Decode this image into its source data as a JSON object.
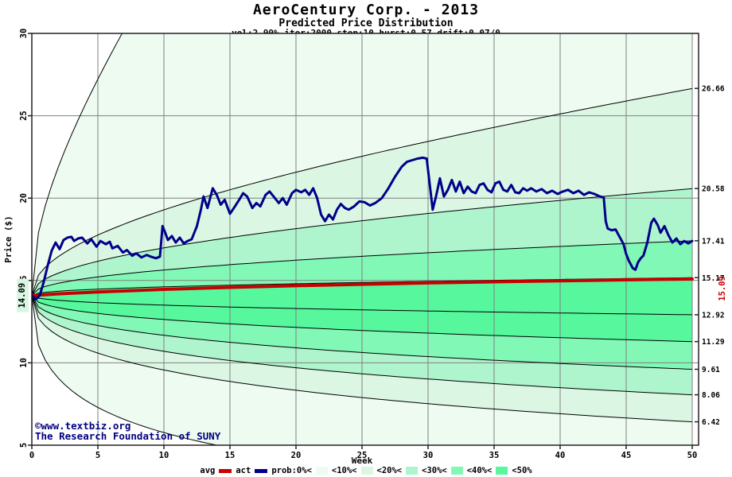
{
  "header": {
    "title": "AeroCentury Corp. - 2013",
    "subtitle": "Predicted Price Distribution",
    "params": "vol:2.99% iter:2000 step:10 hurst:0.57 drift:0.07/0"
  },
  "watermark": {
    "line1": "©www.textbiz.org",
    "line2": "The Research Foundation of SUNY"
  },
  "axes": {
    "x_label": "Week",
    "y_label": "Price ($)",
    "x_ticks": [
      0,
      5,
      10,
      15,
      20,
      25,
      30,
      35,
      40,
      45,
      50
    ],
    "y_ticks": [
      5,
      10,
      15,
      20,
      25,
      30
    ],
    "x_range": [
      0,
      50
    ],
    "y_range": [
      5,
      30
    ]
  },
  "annotations": {
    "start_price_label": "14.09",
    "final_avg_label": "15.09"
  },
  "colors": {
    "act_line": "#00008B",
    "avg_line": "#C80000",
    "grid": "#808080",
    "frame": "#222222",
    "curve": "#000000",
    "watermark": "#000080",
    "start_label_bg": "#D9F6E3",
    "band_s1": "#EDFBF0",
    "band_s2": "#DBF7E4",
    "band_s3": "#AEF5CD",
    "band_s4": "#82F8B6",
    "band_s5": "#57F89D"
  },
  "legend": {
    "items": [
      {
        "type": "text",
        "label": "avg"
      },
      {
        "type": "line",
        "color": "#C80000"
      },
      {
        "type": "text",
        "label": "act"
      },
      {
        "type": "line",
        "color": "#00008B"
      },
      {
        "type": "text",
        "label": "prob:0%<"
      },
      {
        "type": "swatch",
        "color": "#EDFBF0"
      },
      {
        "type": "text",
        "label": "<10%<"
      },
      {
        "type": "swatch",
        "color": "#DBF7E4"
      },
      {
        "type": "text",
        "label": "<20%<"
      },
      {
        "type": "swatch",
        "color": "#AEF5CD"
      },
      {
        "type": "text",
        "label": "<30%<"
      },
      {
        "type": "swatch",
        "color": "#82F8B6"
      },
      {
        "type": "text",
        "label": "<40%<"
      },
      {
        "type": "swatch",
        "color": "#57F89D"
      },
      {
        "type": "text",
        "label": "<50%"
      }
    ]
  },
  "chart_data": {
    "type": "line",
    "title": "AeroCentury Corp. - 2013 / Predicted Price Distribution",
    "xlabel": "Week",
    "ylabel": "Price ($)",
    "xlim": [
      0,
      50
    ],
    "ylim": [
      5,
      30
    ],
    "grid": true,
    "start_price": 14.09,
    "final_average": 15.09,
    "quantile_model": {
      "exponent": 0.44,
      "s0": 14.09
    },
    "quantile_curves": [
      {
        "c": 1.814,
        "endpoint": null,
        "label": ""
      },
      {
        "c": 0.6374,
        "endpoint": 26.66,
        "label": "26.66"
      },
      {
        "c": 0.3787,
        "endpoint": 20.58,
        "label": "20.58"
      },
      {
        "c": 0.2115,
        "endpoint": 17.41,
        "label": "17.41"
      },
      {
        "c": 0.0738,
        "endpoint": 15.17,
        "label": "15.17"
      },
      {
        "c": -0.0866,
        "endpoint": 12.92,
        "label": "12.92"
      },
      {
        "c": -0.2216,
        "endpoint": 11.29,
        "label": "11.29"
      },
      {
        "c": -0.3827,
        "endpoint": 9.61,
        "label": "9.61"
      },
      {
        "c": -0.5586,
        "endpoint": 8.06,
        "label": "8.06"
      },
      {
        "c": -0.7861,
        "endpoint": 6.42,
        "label": "6.42"
      },
      {
        "c": -1.814,
        "endpoint": null,
        "label": ""
      }
    ],
    "bands": [
      {
        "upper": 0,
        "lower": 10,
        "color": "#EDFBF0",
        "prob": "0-10%"
      },
      {
        "upper": 1,
        "lower": 9,
        "color": "#DBF7E4",
        "prob": "10-20%"
      },
      {
        "upper": 2,
        "lower": 8,
        "color": "#AEF5CD",
        "prob": "20-30%"
      },
      {
        "upper": 3,
        "lower": 7,
        "color": "#82F8B6",
        "prob": "30-40%"
      },
      {
        "upper": 4,
        "lower": 6,
        "color": "#57F89D",
        "prob": "40-50%"
      }
    ],
    "series": [
      {
        "name": "avg",
        "color": "#C80000",
        "points": [
          [
            0,
            14.09
          ],
          [
            2,
            14.19
          ],
          [
            5,
            14.3
          ],
          [
            10,
            14.46
          ],
          [
            15,
            14.58
          ],
          [
            20,
            14.68
          ],
          [
            25,
            14.77
          ],
          [
            30,
            14.85
          ],
          [
            35,
            14.92
          ],
          [
            40,
            14.98
          ],
          [
            45,
            15.04
          ],
          [
            50,
            15.09
          ]
        ]
      },
      {
        "name": "act",
        "color": "#00008B",
        "points": [
          [
            0,
            14.09
          ],
          [
            0.3,
            13.85
          ],
          [
            0.6,
            14.1
          ],
          [
            0.9,
            14.9
          ],
          [
            1.2,
            15.9
          ],
          [
            1.5,
            16.8
          ],
          [
            1.8,
            17.3
          ],
          [
            2.1,
            16.9
          ],
          [
            2.4,
            17.45
          ],
          [
            2.7,
            17.6
          ],
          [
            3,
            17.65
          ],
          [
            3.2,
            17.4
          ],
          [
            3.5,
            17.55
          ],
          [
            3.8,
            17.6
          ],
          [
            4.2,
            17.25
          ],
          [
            4.5,
            17.5
          ],
          [
            4.9,
            17.05
          ],
          [
            5.2,
            17.4
          ],
          [
            5.6,
            17.2
          ],
          [
            5.9,
            17.35
          ],
          [
            6.1,
            16.95
          ],
          [
            6.5,
            17.1
          ],
          [
            6.9,
            16.7
          ],
          [
            7.2,
            16.85
          ],
          [
            7.6,
            16.5
          ],
          [
            7.9,
            16.65
          ],
          [
            8.3,
            16.4
          ],
          [
            8.7,
            16.55
          ],
          [
            9,
            16.45
          ],
          [
            9.4,
            16.35
          ],
          [
            9.7,
            16.45
          ],
          [
            9.9,
            18.3
          ],
          [
            10.1,
            17.9
          ],
          [
            10.3,
            17.45
          ],
          [
            10.6,
            17.7
          ],
          [
            10.9,
            17.3
          ],
          [
            11.2,
            17.6
          ],
          [
            11.5,
            17.25
          ],
          [
            11.8,
            17.4
          ],
          [
            12.1,
            17.5
          ],
          [
            12.5,
            18.3
          ],
          [
            12.8,
            19.3
          ],
          [
            13,
            20.1
          ],
          [
            13.3,
            19.4
          ],
          [
            13.7,
            20.6
          ],
          [
            14,
            20.2
          ],
          [
            14.3,
            19.6
          ],
          [
            14.6,
            19.9
          ],
          [
            15,
            19.05
          ],
          [
            15.3,
            19.4
          ],
          [
            15.7,
            19.9
          ],
          [
            16,
            20.3
          ],
          [
            16.3,
            20.1
          ],
          [
            16.7,
            19.4
          ],
          [
            17,
            19.7
          ],
          [
            17.3,
            19.5
          ],
          [
            17.7,
            20.2
          ],
          [
            18,
            20.4
          ],
          [
            18.3,
            20.1
          ],
          [
            18.7,
            19.7
          ],
          [
            19,
            20
          ],
          [
            19.3,
            19.6
          ],
          [
            19.7,
            20.3
          ],
          [
            20,
            20.5
          ],
          [
            20.4,
            20.35
          ],
          [
            20.7,
            20.5
          ],
          [
            21,
            20.2
          ],
          [
            21.3,
            20.6
          ],
          [
            21.6,
            20
          ],
          [
            21.9,
            19
          ],
          [
            22.2,
            18.6
          ],
          [
            22.5,
            19
          ],
          [
            22.8,
            18.7
          ],
          [
            23.1,
            19.3
          ],
          [
            23.4,
            19.65
          ],
          [
            23.7,
            19.4
          ],
          [
            24,
            19.3
          ],
          [
            24.4,
            19.5
          ],
          [
            24.8,
            19.8
          ],
          [
            25.2,
            19.75
          ],
          [
            25.6,
            19.55
          ],
          [
            26,
            19.7
          ],
          [
            26.5,
            20
          ],
          [
            27,
            20.6
          ],
          [
            27.5,
            21.3
          ],
          [
            28,
            21.9
          ],
          [
            28.4,
            22.2
          ],
          [
            28.8,
            22.3
          ],
          [
            29.2,
            22.4
          ],
          [
            29.6,
            22.45
          ],
          [
            29.9,
            22.4
          ],
          [
            30.1,
            21
          ],
          [
            30.35,
            19.3
          ],
          [
            30.6,
            20.1
          ],
          [
            30.9,
            21.2
          ],
          [
            31.2,
            20.1
          ],
          [
            31.5,
            20.5
          ],
          [
            31.8,
            21.1
          ],
          [
            32.1,
            20.4
          ],
          [
            32.4,
            21
          ],
          [
            32.7,
            20.3
          ],
          [
            33,
            20.7
          ],
          [
            33.3,
            20.4
          ],
          [
            33.6,
            20.3
          ],
          [
            33.9,
            20.8
          ],
          [
            34.2,
            20.9
          ],
          [
            34.5,
            20.5
          ],
          [
            34.8,
            20.35
          ],
          [
            35.1,
            20.9
          ],
          [
            35.4,
            21
          ],
          [
            35.7,
            20.5
          ],
          [
            36,
            20.4
          ],
          [
            36.3,
            20.8
          ],
          [
            36.6,
            20.35
          ],
          [
            36.9,
            20.3
          ],
          [
            37.2,
            20.6
          ],
          [
            37.5,
            20.45
          ],
          [
            37.8,
            20.6
          ],
          [
            38.2,
            20.4
          ],
          [
            38.6,
            20.55
          ],
          [
            39,
            20.3
          ],
          [
            39.4,
            20.45
          ],
          [
            39.8,
            20.25
          ],
          [
            40.2,
            20.4
          ],
          [
            40.6,
            20.5
          ],
          [
            41,
            20.3
          ],
          [
            41.4,
            20.45
          ],
          [
            41.8,
            20.2
          ],
          [
            42.2,
            20.35
          ],
          [
            42.6,
            20.25
          ],
          [
            43,
            20.1
          ],
          [
            43.3,
            20.05
          ],
          [
            43.45,
            18.6
          ],
          [
            43.6,
            18.15
          ],
          [
            43.9,
            18.05
          ],
          [
            44.2,
            18.1
          ],
          [
            44.4,
            17.8
          ],
          [
            44.6,
            17.5
          ],
          [
            44.8,
            17.2
          ],
          [
            45,
            16.6
          ],
          [
            45.2,
            16.2
          ],
          [
            45.5,
            15.75
          ],
          [
            45.7,
            15.65
          ],
          [
            45.9,
            16.1
          ],
          [
            46.1,
            16.35
          ],
          [
            46.3,
            16.5
          ],
          [
            46.6,
            17.3
          ],
          [
            46.9,
            18.5
          ],
          [
            47.1,
            18.75
          ],
          [
            47.4,
            18.35
          ],
          [
            47.6,
            17.9
          ],
          [
            47.9,
            18.3
          ],
          [
            48.2,
            17.75
          ],
          [
            48.5,
            17.3
          ],
          [
            48.8,
            17.55
          ],
          [
            49.1,
            17.2
          ],
          [
            49.4,
            17.4
          ],
          [
            49.7,
            17.25
          ],
          [
            50,
            17.4
          ]
        ]
      }
    ]
  }
}
